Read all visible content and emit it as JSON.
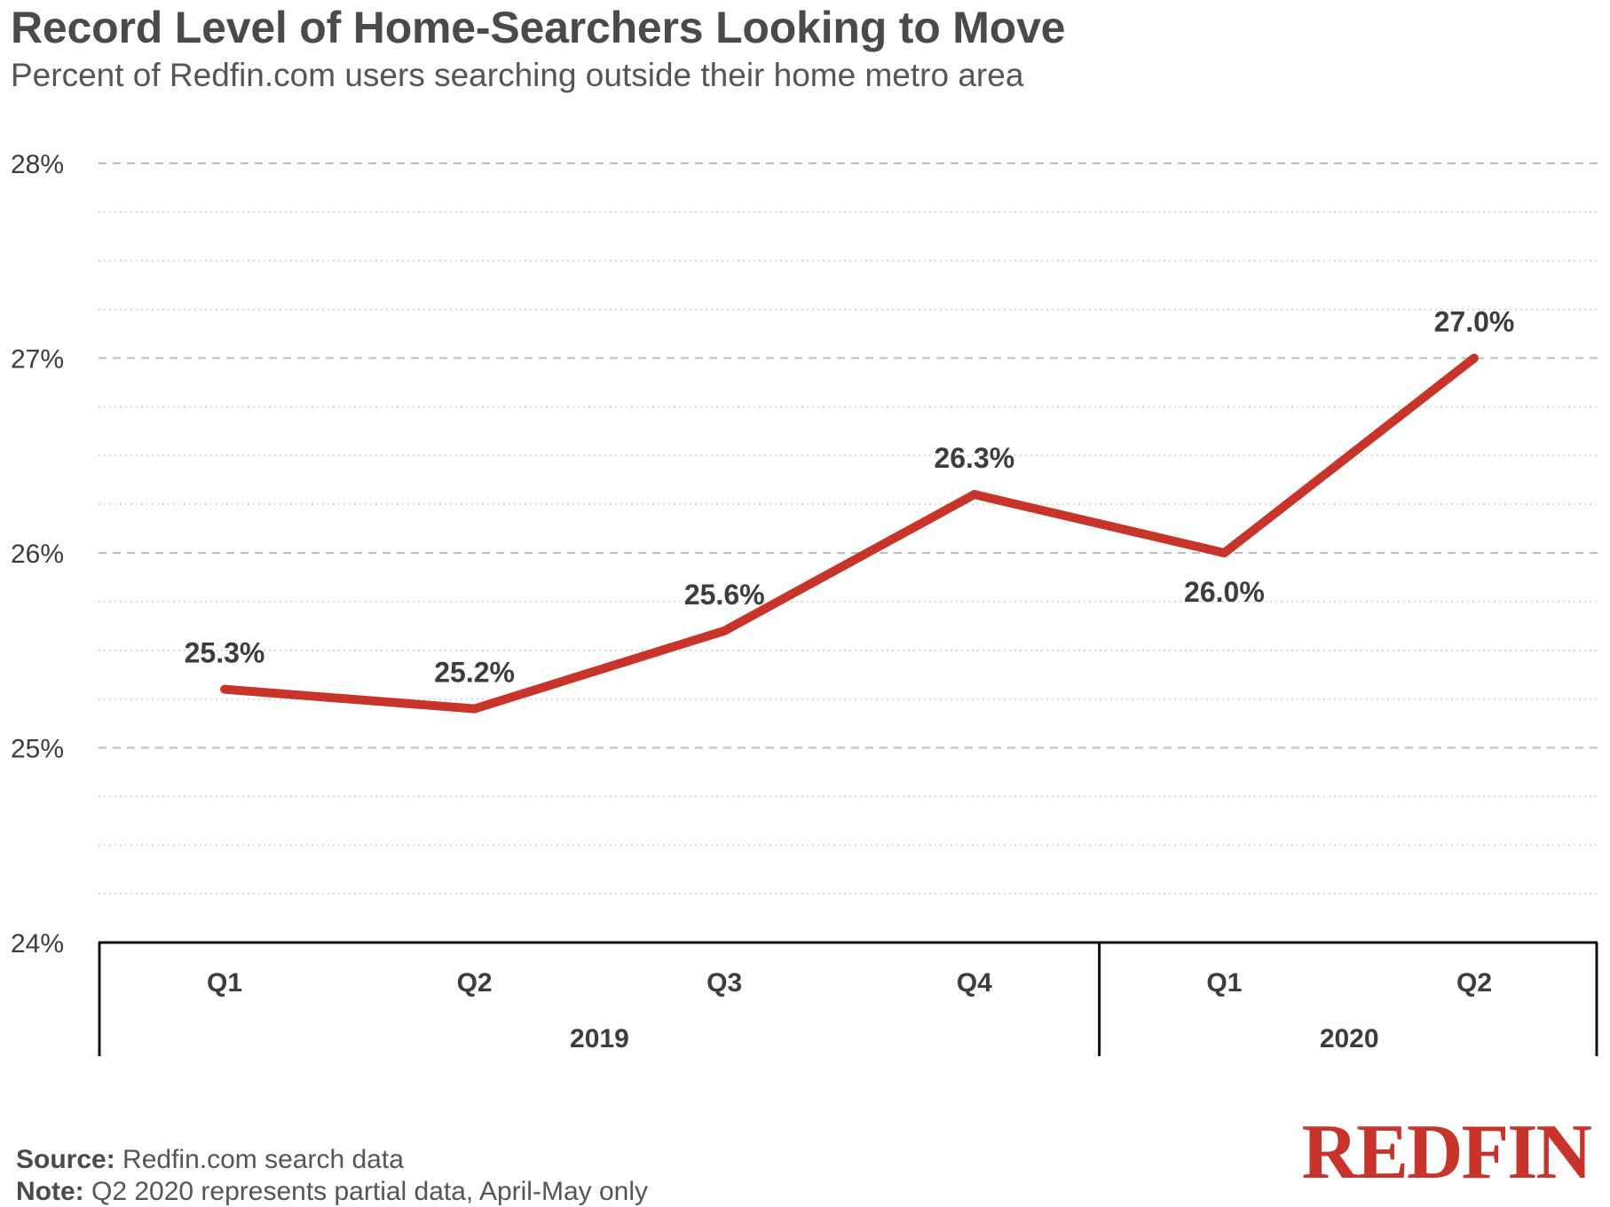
{
  "title": "Record Level of Home-Searchers Looking to Move",
  "subtitle": "Percent of Redfin.com users searching outside their home metro area",
  "footer": {
    "source_label": "Source:",
    "source_text": "Redfin.com search data",
    "note_label": "Note:",
    "note_text": "Q2 2020 represents partial data, April-May only"
  },
  "logo_text": "REDFIN",
  "colors": {
    "line": "#c8342a",
    "text": "#3d3d3d",
    "grid": "#bdbdbd"
  },
  "chart_data": {
    "type": "line",
    "categories": [
      "Q1",
      "Q2",
      "Q3",
      "Q4",
      "Q1",
      "Q2"
    ],
    "groups": [
      {
        "label": "2019",
        "categories": [
          "Q1",
          "Q2",
          "Q3",
          "Q4"
        ]
      },
      {
        "label": "2020",
        "categories": [
          "Q1",
          "Q2"
        ]
      }
    ],
    "series": [
      {
        "values": [
          25.3,
          25.2,
          25.6,
          26.3,
          26.0,
          27.0
        ],
        "data_labels": [
          "25.3%",
          "25.2%",
          "25.6%",
          "26.3%",
          "26.0%",
          "27.0%"
        ]
      }
    ],
    "ylim": [
      24,
      28
    ],
    "yticks": [
      24,
      25,
      26,
      27,
      28
    ],
    "ytick_labels": [
      "24%",
      "25%",
      "26%",
      "27%",
      "28%"
    ],
    "grid": true
  }
}
